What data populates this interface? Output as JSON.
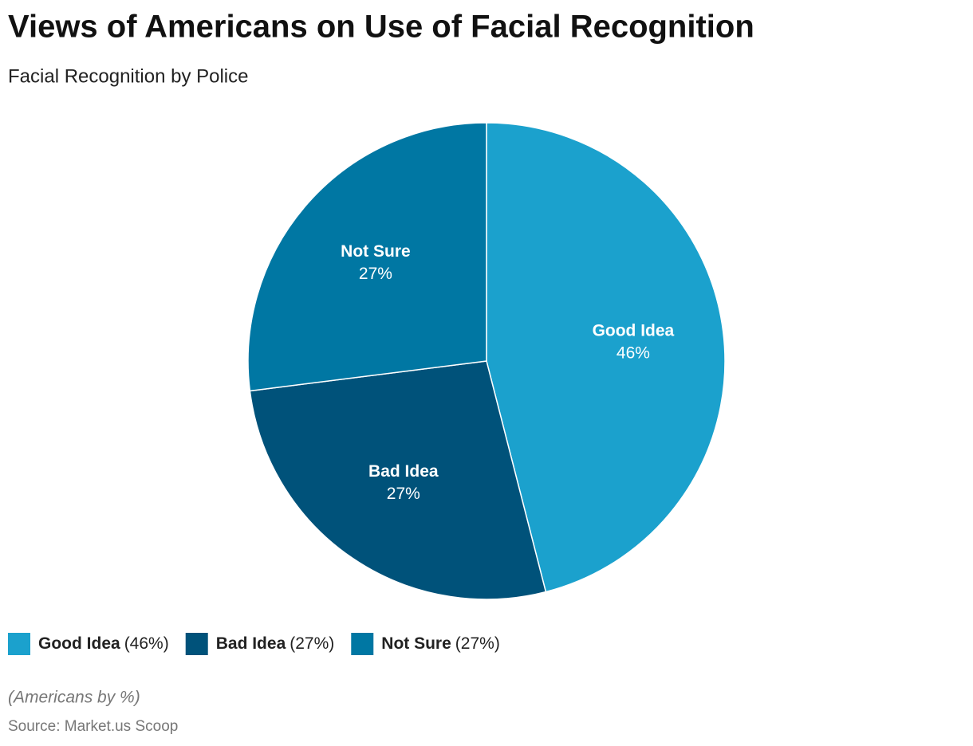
{
  "chart_data": {
    "type": "pie",
    "title": "Views of Americans on Use of Facial Recognition",
    "subtitle": "Facial Recognition by Police",
    "categories": [
      "Good Idea",
      "Bad Idea",
      "Not Sure"
    ],
    "values": [
      46,
      27,
      27
    ],
    "value_labels": [
      "46%",
      "27%",
      "27%"
    ],
    "legend_value_labels": [
      "(46%)",
      "(27%)",
      "(27%)"
    ],
    "colors": [
      "#1ba1cd",
      "#00527a",
      "#0077a3"
    ],
    "note": "(Americans by %)",
    "source": "Source: Market.us Scoop"
  }
}
